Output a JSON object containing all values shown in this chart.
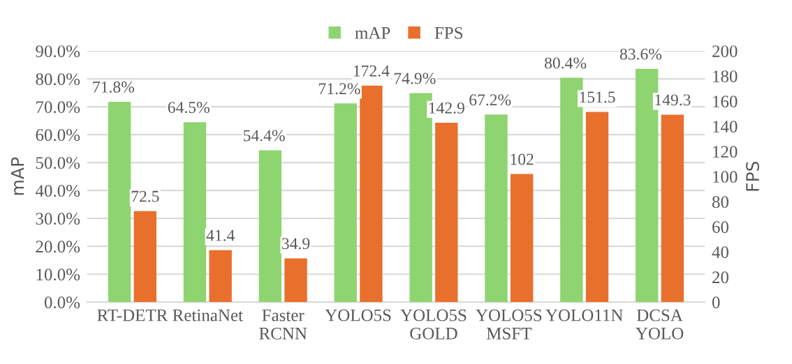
{
  "chart_data": {
    "type": "bar",
    "categories": [
      "RT-DETR",
      "RetinaNet",
      "Faster\nRCNN",
      "YOLO5S",
      "YOLO5S\nGOLD",
      "YOLO5S\nMSFT",
      "YOLO11N",
      "DCSA\nYOLO"
    ],
    "series": [
      {
        "name": "mAP",
        "color": "#8ed470",
        "values": [
          71.8,
          64.5,
          54.4,
          71.2,
          74.9,
          67.2,
          80.4,
          83.6
        ],
        "value_labels": [
          "71.8%",
          "64.5%",
          "54.4%",
          "71.2%",
          "74.9%",
          "67.2%",
          "80.4%",
          "83.6%"
        ]
      },
      {
        "name": "FPS",
        "color": "#e96f2c",
        "axis": "y2",
        "values": [
          72.5,
          41.4,
          34.9,
          172.4,
          142.9,
          102,
          151.5,
          149.3
        ],
        "value_labels": [
          "72.5",
          "41.4",
          "34.9",
          "172.4",
          "142.9",
          "102",
          "151.5",
          "149.3"
        ]
      }
    ],
    "ylabel": "mAP",
    "y2label": "FPS",
    "ylim": [
      0,
      90
    ],
    "yticks": [
      {
        "value": 0,
        "label": "0.0%"
      },
      {
        "value": 10,
        "label": "10.0%"
      },
      {
        "value": 20,
        "label": "20.0%"
      },
      {
        "value": 30,
        "label": "30.0%"
      },
      {
        "value": 40,
        "label": "40.0%"
      },
      {
        "value": 50,
        "label": "50.0%"
      },
      {
        "value": 60,
        "label": "60.0%"
      },
      {
        "value": 70,
        "label": "70.0%"
      },
      {
        "value": 80,
        "label": "80.0%"
      },
      {
        "value": 90,
        "label": "90.0%"
      }
    ],
    "y2lim": [
      0,
      200
    ],
    "y2ticks": [
      0,
      20,
      40,
      60,
      80,
      100,
      120,
      140,
      160,
      180,
      200
    ],
    "grid": "y",
    "legend": "top"
  }
}
